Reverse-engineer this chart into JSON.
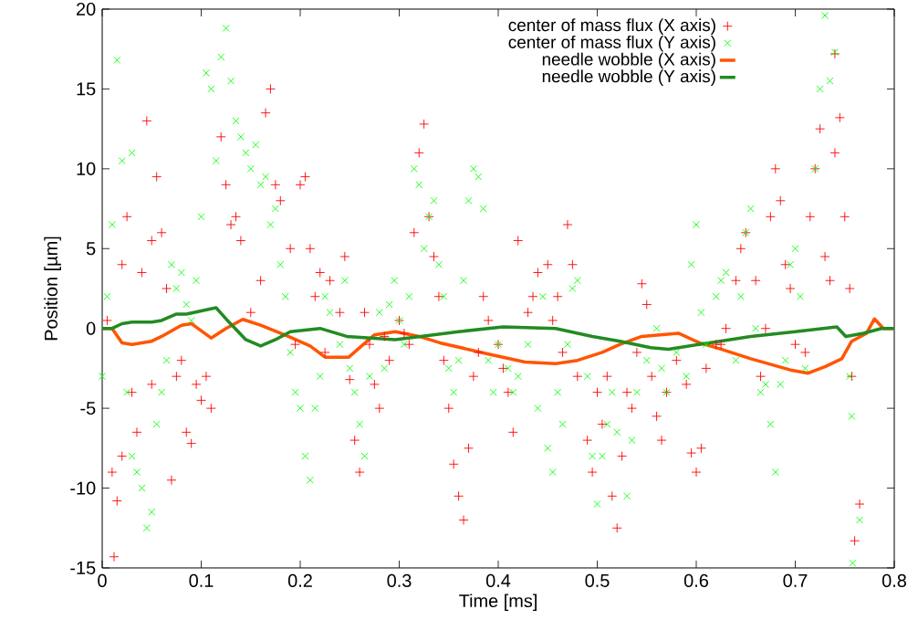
{
  "chart_data": {
    "type": "scatter",
    "xlabel": "Time [ms]",
    "ylabel": "Position [µm]",
    "xlim": [
      0,
      0.8
    ],
    "ylim": [
      -15,
      20
    ],
    "xticks": [
      0,
      0.1,
      0.2,
      0.3,
      0.4,
      0.5,
      0.6,
      0.7,
      0.8
    ],
    "yticks": [
      -15,
      -10,
      -5,
      0,
      5,
      10,
      15,
      20
    ],
    "grid": false,
    "legend": "top",
    "series": [
      {
        "name": "center of mass flux (X axis)",
        "marker": "plus",
        "color": "#ff0000",
        "x": [
          0.005,
          0.01,
          0.012,
          0.015,
          0.02,
          0.02,
          0.025,
          0.03,
          0.035,
          0.04,
          0.045,
          0.05,
          0.05,
          0.055,
          0.06,
          0.065,
          0.07,
          0.075,
          0.08,
          0.085,
          0.09,
          0.095,
          0.1,
          0.105,
          0.11,
          0.12,
          0.125,
          0.13,
          0.135,
          0.14,
          0.15,
          0.16,
          0.165,
          0.17,
          0.175,
          0.18,
          0.19,
          0.195,
          0.2,
          0.205,
          0.21,
          0.215,
          0.22,
          0.225,
          0.23,
          0.24,
          0.245,
          0.25,
          0.255,
          0.26,
          0.265,
          0.27,
          0.275,
          0.28,
          0.285,
          0.29,
          0.3,
          0.305,
          0.31,
          0.315,
          0.32,
          0.325,
          0.33,
          0.335,
          0.34,
          0.345,
          0.35,
          0.355,
          0.36,
          0.365,
          0.37,
          0.375,
          0.38,
          0.385,
          0.39,
          0.4,
          0.405,
          0.41,
          0.415,
          0.42,
          0.43,
          0.435,
          0.44,
          0.45,
          0.455,
          0.46,
          0.465,
          0.47,
          0.475,
          0.48,
          0.49,
          0.495,
          0.5,
          0.505,
          0.51,
          0.515,
          0.52,
          0.525,
          0.53,
          0.535,
          0.54,
          0.545,
          0.55,
          0.555,
          0.56,
          0.565,
          0.57,
          0.58,
          0.59,
          0.595,
          0.6,
          0.605,
          0.61,
          0.62,
          0.625,
          0.63,
          0.64,
          0.645,
          0.65,
          0.66,
          0.665,
          0.67,
          0.675,
          0.68,
          0.685,
          0.69,
          0.695,
          0.7,
          0.71,
          0.715,
          0.72,
          0.725,
          0.73,
          0.735,
          0.74,
          0.745,
          0.75,
          0.755,
          0.757,
          0.76,
          0.765,
          0.74
        ],
        "values": [
          0.5,
          -9,
          -14.3,
          -10.8,
          -8,
          4,
          7,
          -4,
          -6.5,
          3.5,
          13,
          5.5,
          -3.5,
          9.5,
          6,
          2.5,
          -9.5,
          -3,
          -2,
          -6.5,
          -7.2,
          -3.5,
          -4.5,
          -3,
          -5,
          12,
          9,
          6.5,
          7,
          5.5,
          1,
          3,
          13.5,
          15,
          9,
          8,
          5,
          -1,
          9,
          9.5,
          5,
          2,
          3.5,
          -1.5,
          3,
          1,
          4.5,
          -3.2,
          -7,
          -9,
          1,
          -1,
          -3.5,
          -5,
          -0.5,
          -2,
          0.5,
          -0.3,
          -1,
          6,
          11,
          12.8,
          7,
          4.5,
          2,
          -2,
          -5,
          -8.5,
          -10.5,
          -12,
          -7.5,
          -3,
          -1.5,
          2,
          0.5,
          -1,
          -2.5,
          -4,
          -6.5,
          5.5,
          1,
          2,
          3.5,
          4,
          0.5,
          2,
          -1.5,
          6.5,
          4,
          -3,
          -7,
          -9,
          -4,
          -6,
          -3,
          -10.5,
          -12.5,
          -8,
          -4,
          -5,
          -1.5,
          2.8,
          1.5,
          -3,
          -5.5,
          -7,
          -4,
          -2,
          -3.5,
          -7.8,
          -9,
          -7.5,
          -2.5,
          -1,
          -1,
          0,
          3,
          5,
          6,
          3,
          -3,
          0,
          7,
          10,
          8,
          4,
          2.5,
          -1,
          -1.5,
          7,
          10,
          12.5,
          4.5,
          3,
          11,
          13.2,
          7,
          2.5,
          -3,
          -13.3,
          -11,
          17.2
        ]
      },
      {
        "name": "center of mass flux (Y axis)",
        "marker": "cross",
        "color": "#00ff00",
        "x": [
          0.0,
          0.005,
          0.01,
          0.015,
          0.02,
          0.025,
          0.03,
          0.03,
          0.035,
          0.04,
          0.045,
          0.05,
          0.055,
          0.06,
          0.065,
          0.07,
          0.075,
          0.08,
          0.085,
          0.09,
          0.095,
          0.1,
          0.105,
          0.11,
          0.115,
          0.12,
          0.125,
          0.13,
          0.135,
          0.14,
          0.145,
          0.15,
          0.155,
          0.16,
          0.165,
          0.17,
          0.175,
          0.18,
          0.185,
          0.19,
          0.195,
          0.2,
          0.205,
          0.21,
          0.215,
          0.22,
          0.225,
          0.23,
          0.24,
          0.245,
          0.25,
          0.255,
          0.26,
          0.265,
          0.27,
          0.28,
          0.285,
          0.29,
          0.295,
          0.3,
          0.305,
          0.31,
          0.315,
          0.32,
          0.325,
          0.33,
          0.335,
          0.34,
          0.345,
          0.35,
          0.355,
          0.36,
          0.365,
          0.37,
          0.375,
          0.38,
          0.385,
          0.39,
          0.395,
          0.4,
          0.41,
          0.415,
          0.42,
          0.43,
          0.44,
          0.445,
          0.45,
          0.455,
          0.46,
          0.465,
          0.47,
          0.475,
          0.48,
          0.49,
          0.495,
          0.5,
          0.505,
          0.51,
          0.515,
          0.52,
          0.53,
          0.535,
          0.54,
          0.55,
          0.56,
          0.565,
          0.57,
          0.58,
          0.59,
          0.595,
          0.6,
          0.605,
          0.61,
          0.62,
          0.625,
          0.63,
          0.64,
          0.645,
          0.65,
          0.655,
          0.66,
          0.665,
          0.67,
          0.675,
          0.68,
          0.685,
          0.69,
          0.695,
          0.7,
          0.705,
          0.71,
          0.72,
          0.725,
          0.73,
          0.735,
          0.74,
          0.755,
          0.757,
          0.765,
          0.758
        ],
        "values": [
          -3,
          2,
          6.5,
          16.8,
          10.5,
          -4,
          11,
          -8,
          -9,
          -10,
          -12.5,
          -11.5,
          -6,
          -4,
          -2,
          4,
          2.5,
          3.5,
          1.5,
          0.5,
          3,
          7,
          16,
          15,
          10.5,
          17,
          18.8,
          15.5,
          13,
          12,
          11,
          10,
          11.5,
          9,
          9.5,
          6.5,
          7.5,
          4,
          2,
          -1.5,
          -4,
          -5,
          -8,
          -9.5,
          -5,
          -3,
          2,
          1,
          -1,
          3,
          -2.5,
          -4,
          -6,
          -8,
          -3,
          1,
          -2.5,
          1.5,
          3,
          0.5,
          -1,
          2,
          10,
          9,
          5,
          7,
          8,
          4,
          2,
          -2.5,
          -4,
          -2,
          3,
          8,
          10,
          9.5,
          7.5,
          -2,
          -4,
          -1,
          -2.5,
          -4,
          -3,
          -1,
          -5,
          2,
          -7.5,
          -9,
          -4,
          -6,
          -1,
          2.5,
          3,
          -3,
          -8,
          -11,
          -8,
          -6,
          -4,
          -6.5,
          -10.5,
          -7,
          -4,
          -2,
          0,
          -2.5,
          -4,
          -1.5,
          -3,
          4,
          6.5,
          1,
          -1,
          2,
          3,
          3.5,
          -2,
          2,
          6,
          7.5,
          0,
          -4,
          -3.5,
          -6,
          -9,
          -3.5,
          -2,
          4,
          5,
          2,
          -2.5,
          10,
          15,
          19.6,
          15.5,
          17.3,
          -3,
          -5.5,
          -12,
          -14.7
        ]
      },
      {
        "name": "needle wobble (X axis)",
        "type": "line",
        "color": "#ff5500",
        "x": [
          0,
          0.01,
          0.02,
          0.03,
          0.05,
          0.06,
          0.08,
          0.09,
          0.11,
          0.125,
          0.142,
          0.16,
          0.188,
          0.21,
          0.225,
          0.249,
          0.262,
          0.275,
          0.296,
          0.32,
          0.341,
          0.39,
          0.427,
          0.458,
          0.48,
          0.505,
          0.523,
          0.545,
          0.582,
          0.603,
          0.625,
          0.655,
          0.695,
          0.713,
          0.73,
          0.747,
          0.757,
          0.772,
          0.78,
          0.789,
          0.8
        ],
        "values": [
          0,
          0,
          -0.9,
          -1,
          -0.8,
          -0.5,
          0.2,
          0.3,
          -0.6,
          0,
          0.57,
          0.2,
          -0.5,
          -1.1,
          -1.8,
          -1.8,
          -1.1,
          -0.4,
          -0.2,
          -0.5,
          -0.9,
          -1.6,
          -2.1,
          -2.2,
          -2,
          -1.5,
          -1,
          -0.5,
          -0.3,
          -0.9,
          -1.3,
          -1.9,
          -2.6,
          -2.8,
          -2.4,
          -1.9,
          -0.8,
          -0.3,
          0.6,
          0,
          0
        ]
      },
      {
        "name": "needle wobble (Y axis)",
        "type": "line",
        "color": "#228b22",
        "x": [
          0,
          0.01,
          0.02,
          0.03,
          0.05,
          0.06,
          0.075,
          0.085,
          0.1,
          0.115,
          0.125,
          0.145,
          0.16,
          0.175,
          0.19,
          0.22,
          0.247,
          0.296,
          0.36,
          0.405,
          0.458,
          0.495,
          0.523,
          0.554,
          0.572,
          0.603,
          0.655,
          0.7,
          0.742,
          0.751,
          0.769,
          0.787,
          0.8
        ],
        "values": [
          0,
          0,
          0.3,
          0.4,
          0.4,
          0.5,
          0.9,
          0.9,
          1.1,
          1.3,
          0.6,
          -0.7,
          -1.1,
          -0.7,
          -0.2,
          0,
          -0.5,
          -0.7,
          -0.2,
          0.1,
          0,
          -0.5,
          -0.8,
          -1.2,
          -1.3,
          -1,
          -0.5,
          -0.2,
          0.1,
          -0.5,
          -0.3,
          0,
          0
        ]
      }
    ]
  }
}
